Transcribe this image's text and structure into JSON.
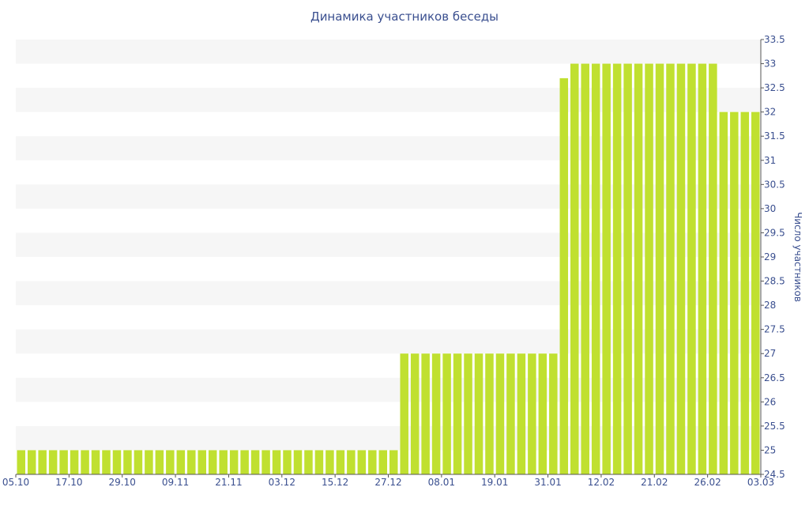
{
  "chart_data": {
    "type": "bar",
    "title": "Динамика участников беседы",
    "xlabel": "",
    "ylabel": "Число участников",
    "ylim": [
      24.5,
      33.5
    ],
    "y_ticks": [
      "24.5",
      "25",
      "25.5",
      "26",
      "26.5",
      "27",
      "27.5",
      "28",
      "28.5",
      "29",
      "29.5",
      "30",
      "30.5",
      "31",
      "31.5",
      "32",
      "32.5",
      "33",
      "33.5"
    ],
    "x_tick_labels": [
      "05.10",
      "17.10",
      "29.10",
      "09.11",
      "21.11",
      "03.12",
      "15.12",
      "27.12",
      "08.01",
      "19.01",
      "31.01",
      "12.02",
      "21.02",
      "26.02",
      "03.03"
    ],
    "values": [
      25,
      25,
      25,
      25,
      25,
      25,
      25,
      25,
      25,
      25,
      25,
      25,
      25,
      25,
      25,
      25,
      25,
      25,
      25,
      25,
      25,
      25,
      25,
      25,
      25,
      25,
      25,
      25,
      25,
      25,
      25,
      25,
      25,
      25,
      25,
      25,
      27,
      27,
      27,
      27,
      27,
      27,
      27,
      27,
      27,
      27,
      27,
      27,
      27,
      27,
      27,
      32.7,
      33,
      33,
      33,
      33,
      33,
      33,
      33,
      33,
      33,
      33,
      33,
      33,
      33,
      33,
      32,
      32,
      32,
      32
    ],
    "grid": true,
    "y_axis_position": "right",
    "legend": "none",
    "bar_color": "#c0e030",
    "band_color": "#f6f6f6",
    "text_color": "#3a4f8f"
  }
}
